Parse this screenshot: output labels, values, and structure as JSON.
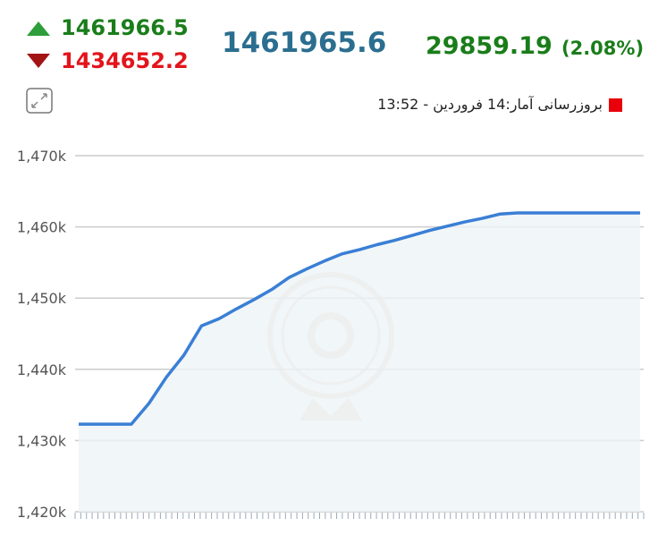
{
  "header": {
    "high": 1461966.5,
    "low": 1434652.2,
    "current": 1461965.6,
    "change": 29859.19,
    "change_percent": "(2.08%)",
    "update_label": "بروزرسانی آمار:14 فروردین - 13:52"
  },
  "chart_data": {
    "type": "area",
    "color": "#3a7fd5",
    "fill": "#eef4f8",
    "grid": true,
    "values": [
      1432300,
      1432300,
      1432300,
      1432300,
      1435200,
      1438900,
      1442000,
      1446100,
      1447100,
      1448500,
      1449800,
      1451200,
      1452900,
      1454100,
      1455200,
      1456200,
      1456800,
      1457500,
      1458100,
      1458800,
      1459500,
      1460100,
      1460700,
      1461200,
      1461800,
      1461966,
      1461966,
      1461966,
      1461966,
      1461966,
      1461966,
      1461966,
      1461966
    ],
    "ylim": [
      1420000,
      1470000
    ],
    "yticks": [
      {
        "value": 1420000,
        "label": "1,420k"
      },
      {
        "value": 1430000,
        "label": "1,430k"
      },
      {
        "value": 1440000,
        "label": "1,440k"
      },
      {
        "value": 1450000,
        "label": "1,450k"
      },
      {
        "value": 1460000,
        "label": "1,460k"
      },
      {
        "value": 1470000,
        "label": "1,470k"
      }
    ]
  }
}
